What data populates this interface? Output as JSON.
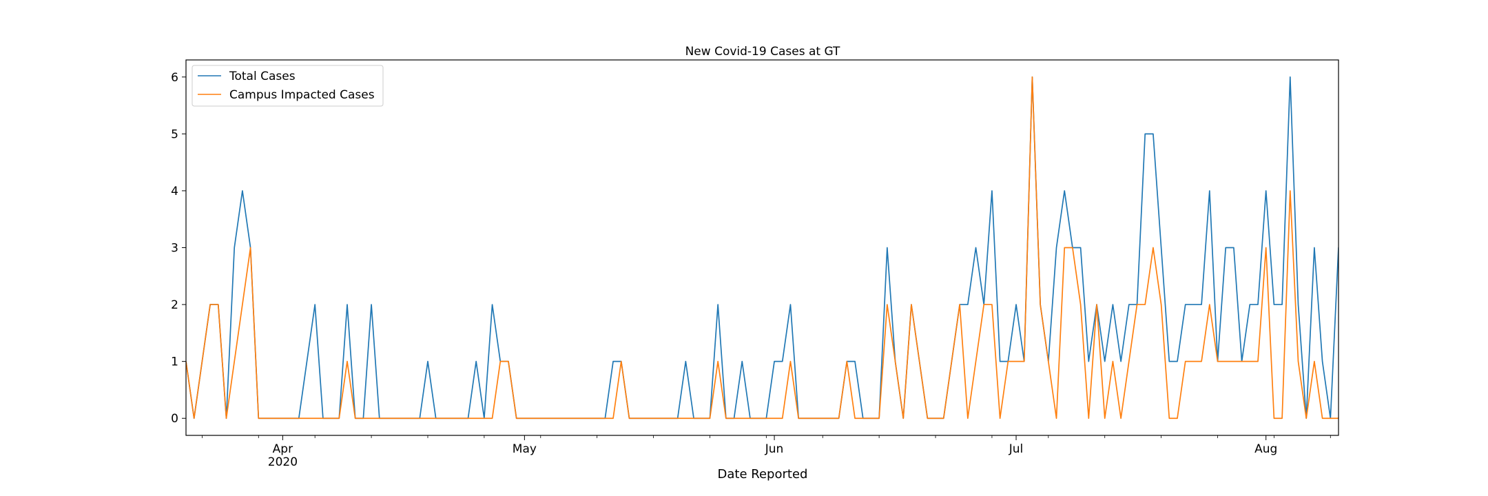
{
  "chart_data": {
    "type": "line",
    "title": "New Covid-19 Cases at GT",
    "xlabel": "Date Reported",
    "ylabel": "",
    "ylim": [
      -0.3,
      6.3
    ],
    "xlim": [
      "2020-03-20",
      "2020-08-10"
    ],
    "yticks": [
      0,
      1,
      2,
      3,
      4,
      5,
      6
    ],
    "xticks_major": [
      {
        "date": "2020-04-01",
        "label": "Apr",
        "sublabel": "2020"
      },
      {
        "date": "2020-05-01",
        "label": "May",
        "sublabel": ""
      },
      {
        "date": "2020-06-01",
        "label": "Jun",
        "sublabel": ""
      },
      {
        "date": "2020-07-01",
        "label": "Jul",
        "sublabel": ""
      },
      {
        "date": "2020-08-01",
        "label": "Aug",
        "sublabel": ""
      }
    ],
    "grid": false,
    "legend_position": "top-left",
    "series": [
      {
        "name": "Total Cases",
        "color": "#1f77b4",
        "points": [
          [
            "2020-03-20",
            1
          ],
          [
            "2020-03-21",
            0
          ],
          [
            "2020-03-23",
            2
          ],
          [
            "2020-03-24",
            2
          ],
          [
            "2020-03-25",
            0
          ],
          [
            "2020-03-26",
            3
          ],
          [
            "2020-03-27",
            4
          ],
          [
            "2020-03-28",
            3
          ],
          [
            "2020-03-29",
            0
          ],
          [
            "2020-04-03",
            0
          ],
          [
            "2020-04-05",
            2
          ],
          [
            "2020-04-06",
            0
          ],
          [
            "2020-04-08",
            0
          ],
          [
            "2020-04-09",
            2
          ],
          [
            "2020-04-10",
            0
          ],
          [
            "2020-04-11",
            0
          ],
          [
            "2020-04-12",
            2
          ],
          [
            "2020-04-13",
            0
          ],
          [
            "2020-04-18",
            0
          ],
          [
            "2020-04-19",
            1
          ],
          [
            "2020-04-20",
            0
          ],
          [
            "2020-04-24",
            0
          ],
          [
            "2020-04-25",
            1
          ],
          [
            "2020-04-26",
            0
          ],
          [
            "2020-04-27",
            2
          ],
          [
            "2020-04-28",
            1
          ],
          [
            "2020-04-29",
            1
          ],
          [
            "2020-04-30",
            0
          ],
          [
            "2020-05-11",
            0
          ],
          [
            "2020-05-12",
            1
          ],
          [
            "2020-05-13",
            1
          ],
          [
            "2020-05-14",
            0
          ],
          [
            "2020-05-20",
            0
          ],
          [
            "2020-05-21",
            1
          ],
          [
            "2020-05-22",
            0
          ],
          [
            "2020-05-24",
            0
          ],
          [
            "2020-05-25",
            2
          ],
          [
            "2020-05-26",
            0
          ],
          [
            "2020-05-27",
            0
          ],
          [
            "2020-05-28",
            1
          ],
          [
            "2020-05-29",
            0
          ],
          [
            "2020-05-31",
            0
          ],
          [
            "2020-06-01",
            1
          ],
          [
            "2020-06-02",
            1
          ],
          [
            "2020-06-03",
            2
          ],
          [
            "2020-06-04",
            0
          ],
          [
            "2020-06-09",
            0
          ],
          [
            "2020-06-10",
            1
          ],
          [
            "2020-06-11",
            1
          ],
          [
            "2020-06-12",
            0
          ],
          [
            "2020-06-14",
            0
          ],
          [
            "2020-06-15",
            3
          ],
          [
            "2020-06-16",
            1
          ],
          [
            "2020-06-17",
            0
          ],
          [
            "2020-06-18",
            2
          ],
          [
            "2020-06-19",
            1
          ],
          [
            "2020-06-20",
            0
          ],
          [
            "2020-06-22",
            0
          ],
          [
            "2020-06-24",
            2
          ],
          [
            "2020-06-25",
            2
          ],
          [
            "2020-06-26",
            3
          ],
          [
            "2020-06-27",
            2
          ],
          [
            "2020-06-28",
            4
          ],
          [
            "2020-06-29",
            1
          ],
          [
            "2020-06-30",
            1
          ],
          [
            "2020-07-01",
            2
          ],
          [
            "2020-07-02",
            1
          ],
          [
            "2020-07-03",
            6
          ],
          [
            "2020-07-04",
            2
          ],
          [
            "2020-07-05",
            1
          ],
          [
            "2020-07-06",
            3
          ],
          [
            "2020-07-07",
            4
          ],
          [
            "2020-07-08",
            3
          ],
          [
            "2020-07-09",
            3
          ],
          [
            "2020-07-10",
            1
          ],
          [
            "2020-07-11",
            2
          ],
          [
            "2020-07-12",
            1
          ],
          [
            "2020-07-13",
            2
          ],
          [
            "2020-07-14",
            1
          ],
          [
            "2020-07-15",
            2
          ],
          [
            "2020-07-16",
            2
          ],
          [
            "2020-07-17",
            5
          ],
          [
            "2020-07-18",
            5
          ],
          [
            "2020-07-19",
            3
          ],
          [
            "2020-07-20",
            1
          ],
          [
            "2020-07-21",
            1
          ],
          [
            "2020-07-22",
            2
          ],
          [
            "2020-07-24",
            2
          ],
          [
            "2020-07-25",
            4
          ],
          [
            "2020-07-26",
            1
          ],
          [
            "2020-07-27",
            3
          ],
          [
            "2020-07-28",
            3
          ],
          [
            "2020-07-29",
            1
          ],
          [
            "2020-07-30",
            2
          ],
          [
            "2020-07-31",
            2
          ],
          [
            "2020-08-01",
            4
          ],
          [
            "2020-08-02",
            2
          ],
          [
            "2020-08-03",
            2
          ],
          [
            "2020-08-04",
            6
          ],
          [
            "2020-08-05",
            2
          ],
          [
            "2020-08-06",
            0
          ],
          [
            "2020-08-07",
            3
          ],
          [
            "2020-08-08",
            1
          ],
          [
            "2020-08-09",
            0
          ],
          [
            "2020-08-10",
            3
          ],
          [
            "2020-08-11",
            1
          ]
        ]
      },
      {
        "name": "Campus Impacted Cases",
        "color": "#ff7f0e",
        "points": [
          [
            "2020-03-20",
            1
          ],
          [
            "2020-03-21",
            0
          ],
          [
            "2020-03-23",
            2
          ],
          [
            "2020-03-24",
            2
          ],
          [
            "2020-03-25",
            0
          ],
          [
            "2020-03-28",
            3
          ],
          [
            "2020-03-29",
            0
          ],
          [
            "2020-04-08",
            0
          ],
          [
            "2020-04-09",
            1
          ],
          [
            "2020-04-10",
            0
          ],
          [
            "2020-04-27",
            0
          ],
          [
            "2020-04-28",
            1
          ],
          [
            "2020-04-29",
            1
          ],
          [
            "2020-04-30",
            0
          ],
          [
            "2020-05-12",
            0
          ],
          [
            "2020-05-13",
            1
          ],
          [
            "2020-05-14",
            0
          ],
          [
            "2020-05-24",
            0
          ],
          [
            "2020-05-25",
            1
          ],
          [
            "2020-05-26",
            0
          ],
          [
            "2020-06-02",
            0
          ],
          [
            "2020-06-03",
            1
          ],
          [
            "2020-06-04",
            0
          ],
          [
            "2020-06-09",
            0
          ],
          [
            "2020-06-10",
            1
          ],
          [
            "2020-06-11",
            0
          ],
          [
            "2020-06-14",
            0
          ],
          [
            "2020-06-15",
            2
          ],
          [
            "2020-06-16",
            1
          ],
          [
            "2020-06-17",
            0
          ],
          [
            "2020-06-18",
            2
          ],
          [
            "2020-06-19",
            1
          ],
          [
            "2020-06-20",
            0
          ],
          [
            "2020-06-22",
            0
          ],
          [
            "2020-06-24",
            2
          ],
          [
            "2020-06-25",
            0
          ],
          [
            "2020-06-27",
            2
          ],
          [
            "2020-06-28",
            2
          ],
          [
            "2020-06-29",
            0
          ],
          [
            "2020-06-30",
            1
          ],
          [
            "2020-07-01",
            1
          ],
          [
            "2020-07-02",
            1
          ],
          [
            "2020-07-03",
            6
          ],
          [
            "2020-07-04",
            2
          ],
          [
            "2020-07-06",
            0
          ],
          [
            "2020-07-07",
            3
          ],
          [
            "2020-07-08",
            3
          ],
          [
            "2020-07-09",
            2
          ],
          [
            "2020-07-10",
            0
          ],
          [
            "2020-07-11",
            2
          ],
          [
            "2020-07-12",
            0
          ],
          [
            "2020-07-13",
            1
          ],
          [
            "2020-07-14",
            0
          ],
          [
            "2020-07-16",
            2
          ],
          [
            "2020-07-17",
            2
          ],
          [
            "2020-07-18",
            3
          ],
          [
            "2020-07-19",
            2
          ],
          [
            "2020-07-20",
            0
          ],
          [
            "2020-07-21",
            0
          ],
          [
            "2020-07-22",
            1
          ],
          [
            "2020-07-24",
            1
          ],
          [
            "2020-07-25",
            2
          ],
          [
            "2020-07-26",
            1
          ],
          [
            "2020-07-31",
            1
          ],
          [
            "2020-08-01",
            3
          ],
          [
            "2020-08-02",
            0
          ],
          [
            "2020-08-03",
            0
          ],
          [
            "2020-08-04",
            4
          ],
          [
            "2020-08-05",
            1
          ],
          [
            "2020-08-06",
            0
          ],
          [
            "2020-08-07",
            1
          ],
          [
            "2020-08-08",
            0
          ],
          [
            "2020-08-10",
            0
          ],
          [
            "2020-08-11",
            1
          ]
        ]
      }
    ]
  }
}
